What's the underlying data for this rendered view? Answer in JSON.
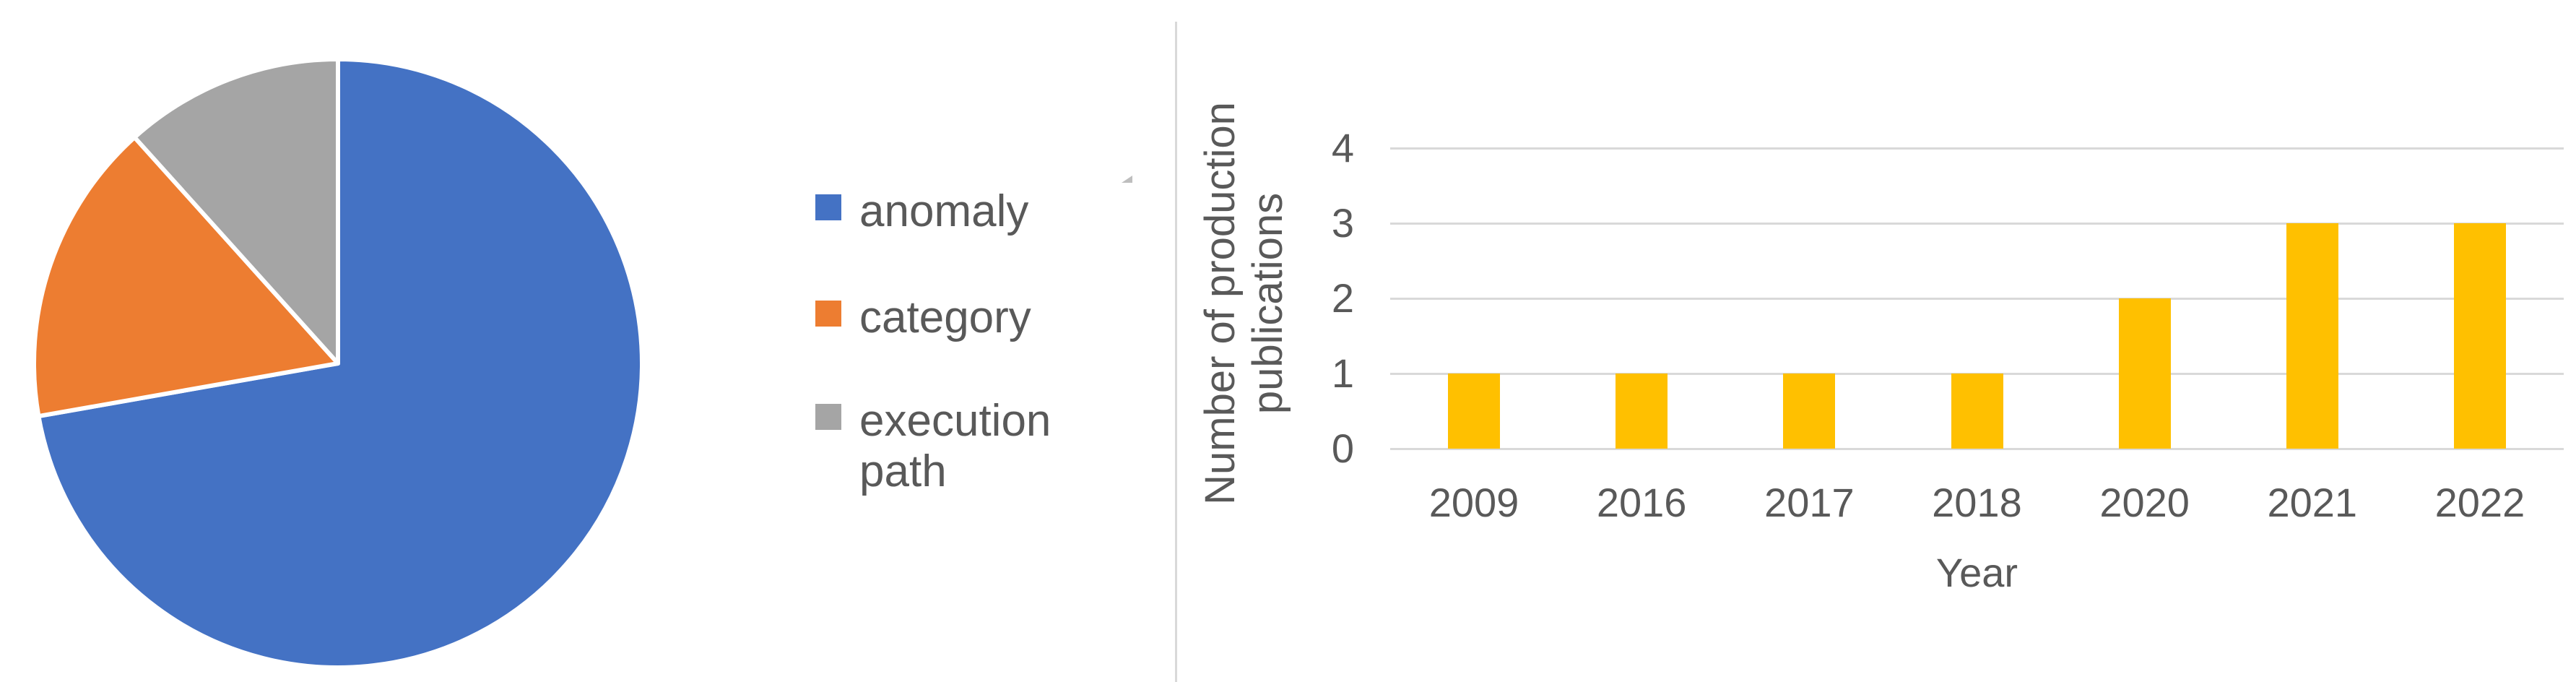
{
  "page": {
    "background": "#FFFFFF",
    "divider_color": "#D9D9D9",
    "text_color": "#595959"
  },
  "pie_panel": {
    "legend_position": "right",
    "legend_items": [
      "anomaly",
      "category",
      "execution path"
    ]
  },
  "bar_panel": {
    "xlabel": "Year",
    "ylabel": "Number of production publications"
  },
  "chart_data": [
    {
      "type": "pie",
      "title": "",
      "start_reference": "12-o'clock, clockwise",
      "separator_color": "#FFFFFF",
      "slices": [
        {
          "label": "anomaly",
          "color": "#4472C4",
          "percent_est": 72.2,
          "start_angle_deg": 0,
          "end_angle_deg": 260
        },
        {
          "label": "category",
          "color": "#ED7D31",
          "percent_est": 16.1,
          "start_angle_deg": 260,
          "end_angle_deg": 318
        },
        {
          "label": "execution path",
          "color": "#A5A5A5",
          "percent_est": 11.7,
          "start_angle_deg": 318,
          "end_angle_deg": 360
        }
      ]
    },
    {
      "type": "bar",
      "title": "",
      "categories": [
        "2009",
        "2016",
        "2017",
        "2018",
        "2020",
        "2021",
        "2022"
      ],
      "values": [
        1,
        1,
        1,
        1,
        2,
        3,
        3
      ],
      "bar_color": "#FFC000",
      "xlabel": "Year",
      "ylabel": "Number of production publications",
      "ylabel_line1": "Number of production",
      "ylabel_line2": "publications",
      "ylim": [
        0,
        4
      ],
      "yticks": [
        0,
        1,
        2,
        3,
        4
      ],
      "grid": "horizontal",
      "gridline_color": "#D9D9D9",
      "legend_position": "none"
    }
  ]
}
